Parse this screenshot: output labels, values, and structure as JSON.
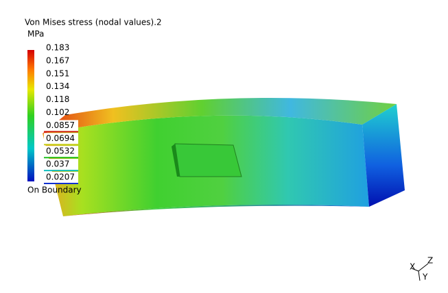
{
  "legend": {
    "title": "Von Mises stress (nodal values).2",
    "unit": "MPa",
    "labels": [
      "0.183",
      "0.167",
      "0.151",
      "0.134",
      "0.118",
      "0.102",
      "0.0857",
      "0.0694",
      "0.0532",
      "0.037",
      "0.0207"
    ],
    "boundary": "On Boundary"
  },
  "axes": {
    "x": "X",
    "y": "Y",
    "z": "Z"
  }
}
